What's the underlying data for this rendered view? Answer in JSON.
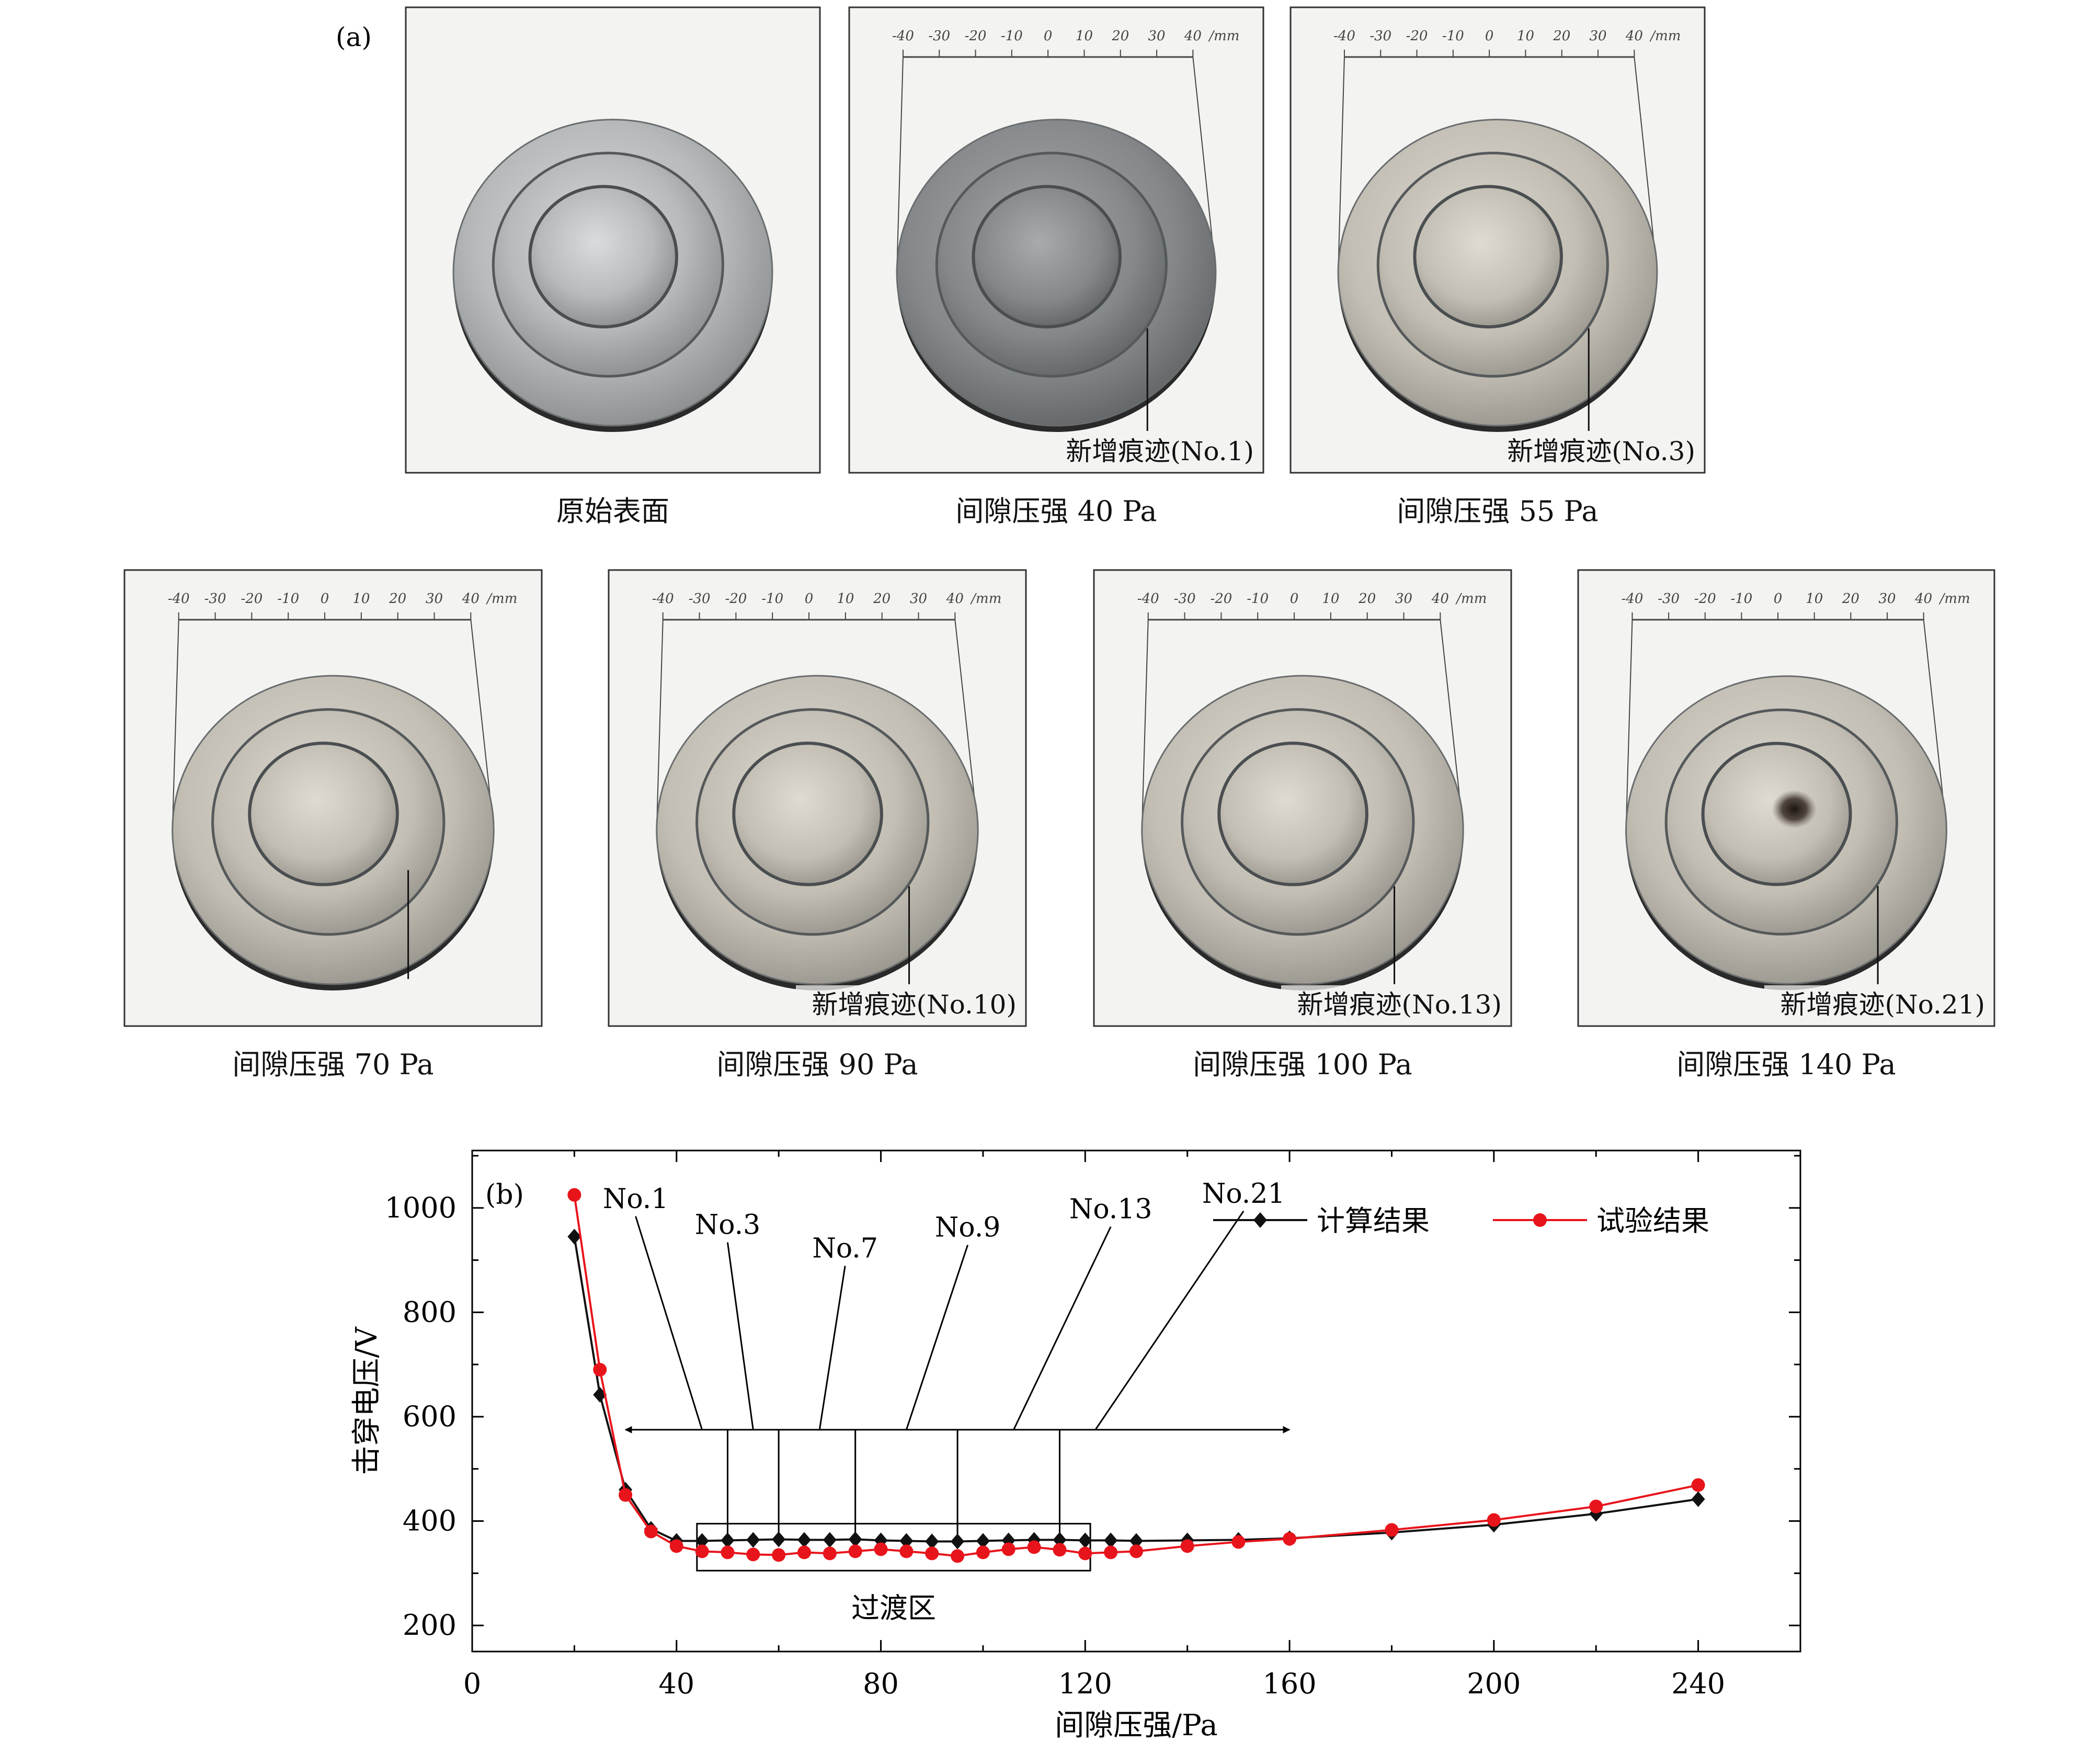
{
  "panel_a": {
    "label": "(a)",
    "ruler_ticks": [
      "-40",
      "-30",
      "-20",
      "-10",
      "0",
      "10",
      "20",
      "30",
      "40"
    ],
    "ruler_unit": "/mm",
    "photos": [
      {
        "caption": "原始表面",
        "note": "",
        "has_ruler": false,
        "burn": false
      },
      {
        "caption": "间隙压强 40 Pa",
        "note": "新增痕迹(No.1)",
        "has_ruler": true,
        "burn": false
      },
      {
        "caption": "间隙压强 55 Pa",
        "note": "新增痕迹(No.3)",
        "has_ruler": true,
        "burn": false
      },
      {
        "caption": "间隙压强 70 Pa",
        "note": "",
        "has_ruler": true,
        "burn": false
      },
      {
        "caption": "间隙压强 90 Pa",
        "note": "新增痕迹(No.10)",
        "has_ruler": true,
        "burn": false
      },
      {
        "caption": "间隙压强 100 Pa",
        "note": "新增痕迹(No.13)",
        "has_ruler": true,
        "burn": false
      },
      {
        "caption": "间隙压强 140 Pa",
        "note": "新增痕迹(No.21)",
        "has_ruler": true,
        "burn": true
      }
    ]
  },
  "chart_data": {
    "type": "line",
    "panel_label": "(b)",
    "xlabel": "间隙压强/Pa",
    "ylabel": "击穿电压/V",
    "xlim": [
      0,
      260
    ],
    "ylim": [
      150,
      1110
    ],
    "xticks": [
      0,
      40,
      80,
      120,
      160,
      200,
      240
    ],
    "yticks": [
      200,
      400,
      600,
      800,
      1000
    ],
    "legend_position": "top-right",
    "series": [
      {
        "name": "计算结果",
        "color": "#111111",
        "marker": "diamond",
        "x": [
          20,
          25,
          30,
          35,
          40,
          45,
          50,
          55,
          60,
          65,
          70,
          75,
          80,
          85,
          90,
          95,
          100,
          105,
          110,
          115,
          120,
          125,
          130,
          140,
          150,
          160,
          180,
          200,
          220,
          240
        ],
        "y": [
          945,
          642,
          460,
          385,
          362,
          362,
          363,
          364,
          365,
          364,
          364,
          365,
          363,
          362,
          361,
          361,
          362,
          363,
          364,
          364,
          363,
          363,
          362,
          363,
          364,
          367,
          378,
          393,
          414,
          442
        ]
      },
      {
        "name": "试验结果",
        "color": "#e8141b",
        "marker": "circle",
        "x": [
          20,
          25,
          30,
          35,
          40,
          45,
          50,
          55,
          60,
          65,
          70,
          75,
          80,
          85,
          90,
          95,
          100,
          105,
          110,
          115,
          120,
          125,
          130,
          140,
          150,
          160,
          180,
          200,
          220,
          240
        ],
        "y": [
          1025,
          690,
          450,
          380,
          352,
          342,
          340,
          336,
          335,
          340,
          338,
          342,
          346,
          342,
          338,
          333,
          340,
          346,
          350,
          345,
          338,
          340,
          342,
          352,
          360,
          366,
          383,
          402,
          428,
          469
        ]
      }
    ],
    "arrow_range": [
      30,
      160
    ],
    "arrow_y": 575,
    "transition_region": {
      "label": "过渡区",
      "x": [
        44,
        121
      ],
      "y": [
        305,
        395
      ]
    },
    "annotations": [
      {
        "text": "No.1",
        "x": 32,
        "y": 1000,
        "points_to_x": 45
      },
      {
        "text": "No.3",
        "x": 50,
        "y": 950,
        "points_to_x": 55
      },
      {
        "text": "No.7",
        "x": 73,
        "y": 905,
        "points_to_x": 68
      },
      {
        "text": "No.9",
        "x": 97,
        "y": 945,
        "points_to_x": 85
      },
      {
        "text": "No.13",
        "x": 125,
        "y": 980,
        "points_to_x": 106
      },
      {
        "text": "No.21",
        "x": 151,
        "y": 1010,
        "points_to_x": 122
      }
    ],
    "tick_lines_x": [
      50,
      60,
      75,
      95,
      115
    ]
  }
}
